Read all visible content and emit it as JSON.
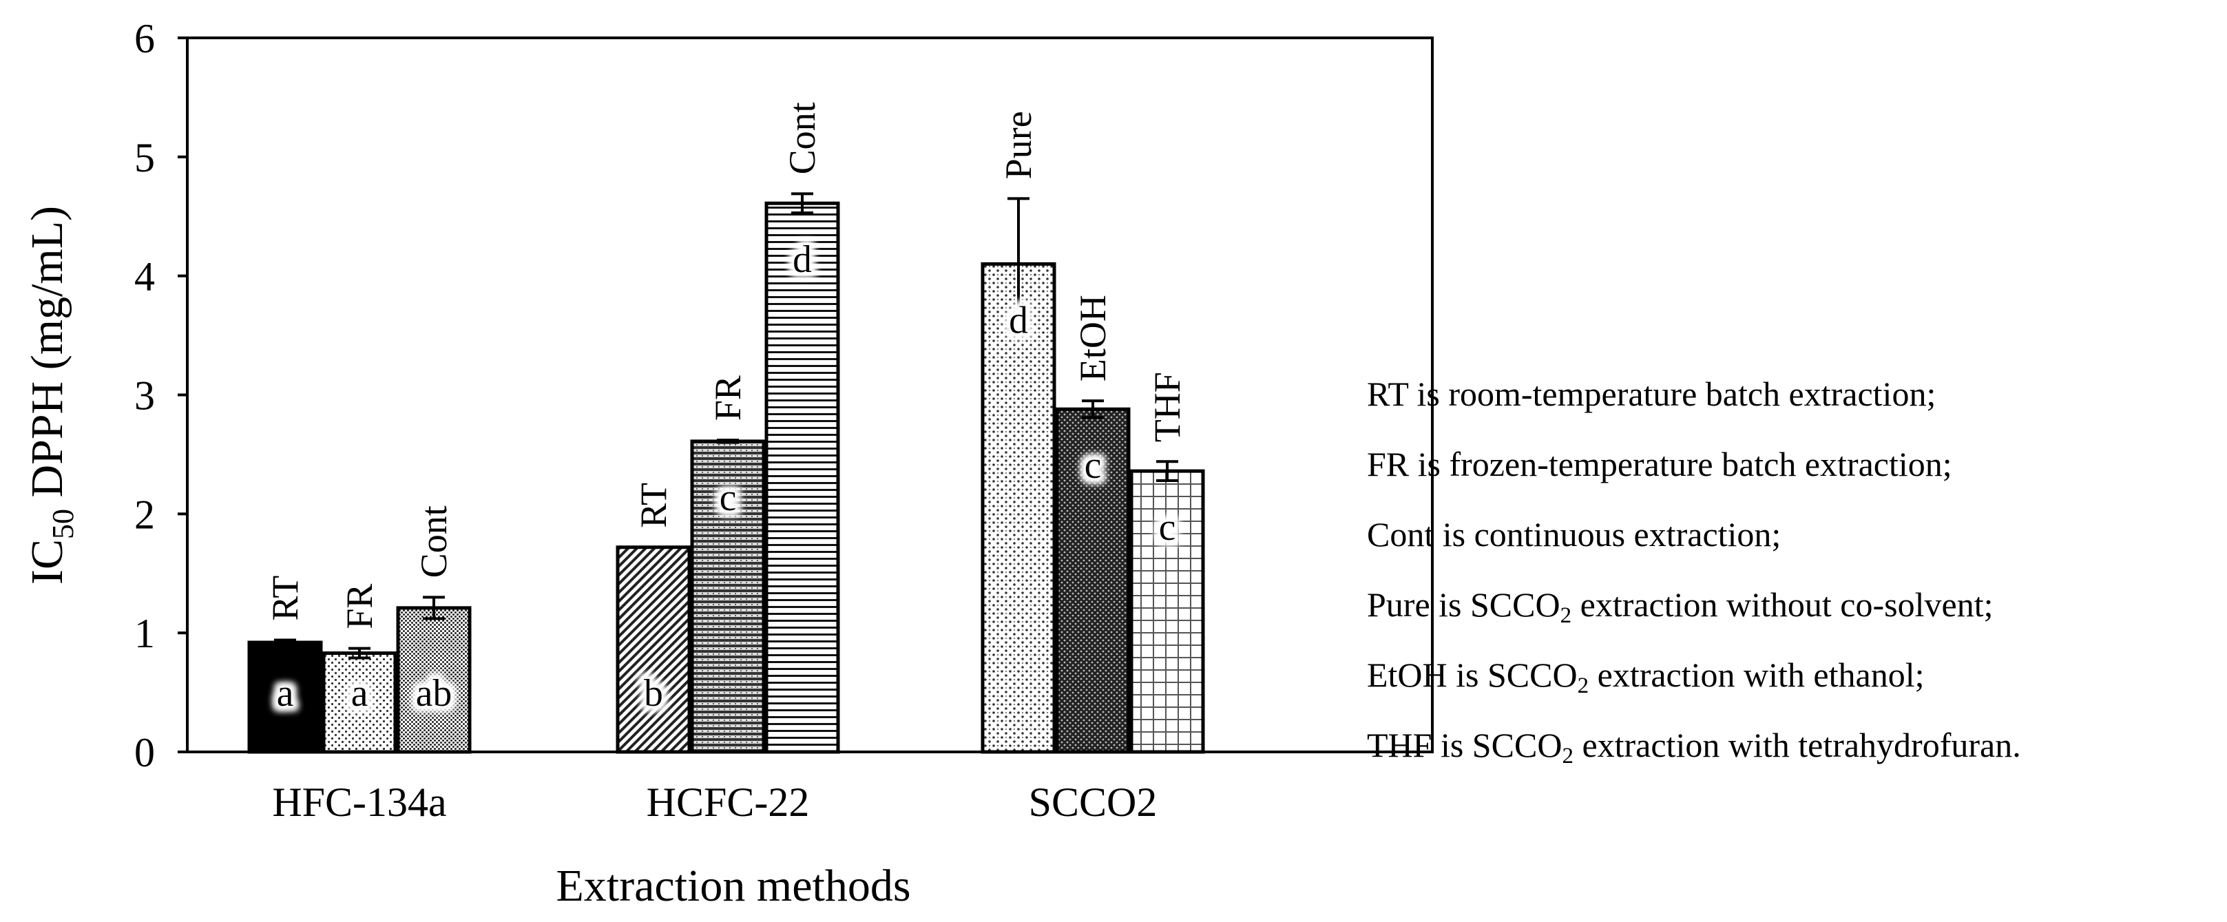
{
  "chart_data": {
    "type": "bar",
    "title": "",
    "ylabel": {
      "main": "IC",
      "sub": "50",
      "rest": " DPPH (mg/mL)"
    },
    "xlabel": "Extraction methods",
    "ylim": [
      0,
      6
    ],
    "yticks": [
      "0",
      "1",
      "2",
      "3",
      "4",
      "5",
      "6"
    ],
    "grid": false,
    "legend": "none",
    "groups": [
      {
        "name": "HFC-134a",
        "bars": [
          {
            "label": "RT",
            "value": 0.92,
            "error": 0.02,
            "letter": "a",
            "pattern": "solid-black"
          },
          {
            "label": "FR",
            "value": 0.83,
            "error": 0.04,
            "letter": "a",
            "pattern": "light-dots"
          },
          {
            "label": "Cont",
            "value": 1.21,
            "error": 0.09,
            "letter": "ab",
            "pattern": "dense-dots"
          }
        ]
      },
      {
        "name": "HCFC-22",
        "bars": [
          {
            "label": "RT",
            "value": 1.72,
            "error": 0.0,
            "letter": "b",
            "pattern": "diagonal-lines"
          },
          {
            "label": "FR",
            "value": 2.61,
            "error": 0.01,
            "letter": "c",
            "pattern": "dark-horizontal"
          },
          {
            "label": "Cont",
            "value": 4.61,
            "error": 0.08,
            "letter": "d",
            "pattern": "horizontal-lines"
          }
        ]
      },
      {
        "name": "SCCO2",
        "bars": [
          {
            "label": "Pure",
            "value": 4.1,
            "error": 0.55,
            "letter": "d",
            "pattern": "sparse-dots"
          },
          {
            "label": "EtOH",
            "value": 2.88,
            "error": 0.07,
            "letter": "c",
            "pattern": "dark-weave"
          },
          {
            "label": "THF",
            "value": 2.36,
            "error": 0.08,
            "letter": "c",
            "pattern": "grid"
          }
        ]
      }
    ]
  },
  "legend_notes": [
    {
      "pre": "RT is room-temperature batch extraction;"
    },
    {
      "pre": "FR is frozen-temperature batch extraction;"
    },
    {
      "pre": "Cont is continuous extraction;"
    },
    {
      "pre": "Pure is SCCO",
      "sub": "2",
      "post": " extraction without co-solvent;"
    },
    {
      "pre": "EtOH is SCCO",
      "sub": "2",
      "post": " extraction with ethanol;"
    },
    {
      "pre": "THF is SCCO",
      "sub": "2",
      "post": " extraction with tetrahydrofuran."
    }
  ]
}
